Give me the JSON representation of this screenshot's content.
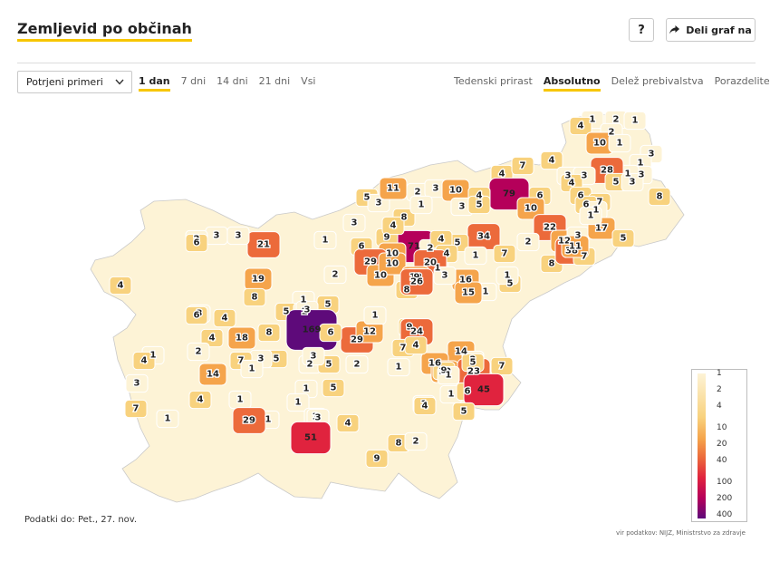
{
  "header": {
    "title": "Zemljevid po občinah",
    "help_label": "?",
    "share_label": "Deli graf na",
    "share_icon": "share-arrow-icon"
  },
  "controls": {
    "metric_select": {
      "value": "Potrjeni primeri",
      "icon": "chevron-down-icon"
    },
    "period_tabs": [
      {
        "label": "1 dan",
        "active": true
      },
      {
        "label": "7 dni",
        "active": false
      },
      {
        "label": "14 dni",
        "active": false
      },
      {
        "label": "21 dni",
        "active": false
      },
      {
        "label": "Vsi",
        "active": false
      }
    ],
    "mode_tabs": [
      {
        "label": "Tedenski prirast",
        "active": false
      },
      {
        "label": "Absolutno",
        "active": true
      },
      {
        "label": "Delež prebivalstva",
        "active": false
      },
      {
        "label": "Porazdelitev",
        "active": false
      }
    ]
  },
  "legend": {
    "ticks": [
      "1",
      "2",
      "4",
      "10",
      "20",
      "40",
      "100",
      "200",
      "400"
    ],
    "tick_values": [
      1,
      2,
      4,
      10,
      20,
      40,
      100,
      200,
      400
    ],
    "colors": {
      "low": "#fdf3d6",
      "mid_low": "#f8d27e",
      "mid": "#f5a44b",
      "mid_high": "#ec6a3b",
      "high": "#e0233e",
      "very_high": "#b5005a",
      "max": "#5e0a7a",
      "empty": "#ffffff",
      "border": "#c9c9c9"
    }
  },
  "map_values": [
    "1",
    "2",
    "1",
    "4",
    "2",
    "10",
    "1",
    "3",
    "1",
    "3",
    "1",
    "28",
    "4",
    "7",
    "4",
    "3",
    "3",
    "5",
    "3",
    "8",
    "4",
    "79",
    "6",
    "6",
    "7",
    "5",
    "3",
    "11",
    "2",
    "3",
    "10",
    "4",
    "8",
    "1",
    "3",
    "5",
    "6",
    "1",
    "10",
    "22",
    "12",
    "3",
    "17",
    "5",
    "1",
    "3",
    "21",
    "71",
    "2",
    "34",
    "5",
    "6",
    "4",
    "9",
    "4",
    "1",
    "3",
    "3",
    "2",
    "6",
    "10",
    "1",
    "4",
    "1",
    "16",
    "7",
    "8",
    "2",
    "38",
    "7",
    "11",
    "20",
    "19",
    "2",
    "29",
    "10",
    "10",
    "12",
    "9",
    "8",
    "3",
    "26",
    "1",
    "5",
    "15",
    "1",
    "4",
    "3",
    "6",
    "4",
    "8",
    "1",
    "5",
    "1",
    "5",
    "3",
    "169",
    "29",
    "12",
    "9",
    "6",
    "1",
    "24",
    "14",
    "8",
    "4",
    "18",
    "1",
    "2",
    "7",
    "16",
    "2",
    "4",
    "10",
    "23",
    "2",
    "5",
    "5",
    "3",
    "2",
    "5",
    "1",
    "9",
    "1",
    "5",
    "7",
    "7",
    "1",
    "3",
    "4",
    "3",
    "14",
    "4",
    "1",
    "1",
    "1",
    "1",
    "6",
    "45",
    "1",
    "1",
    "3",
    "4",
    "4",
    "5",
    "7",
    "1",
    "1",
    "29",
    "51",
    "8",
    "9",
    "2"
  ],
  "footer": {
    "updated": "Podatki do: Pet., 27. nov.",
    "source": "vir podatkov: NIJZ, Ministrstvo za zdravje"
  }
}
